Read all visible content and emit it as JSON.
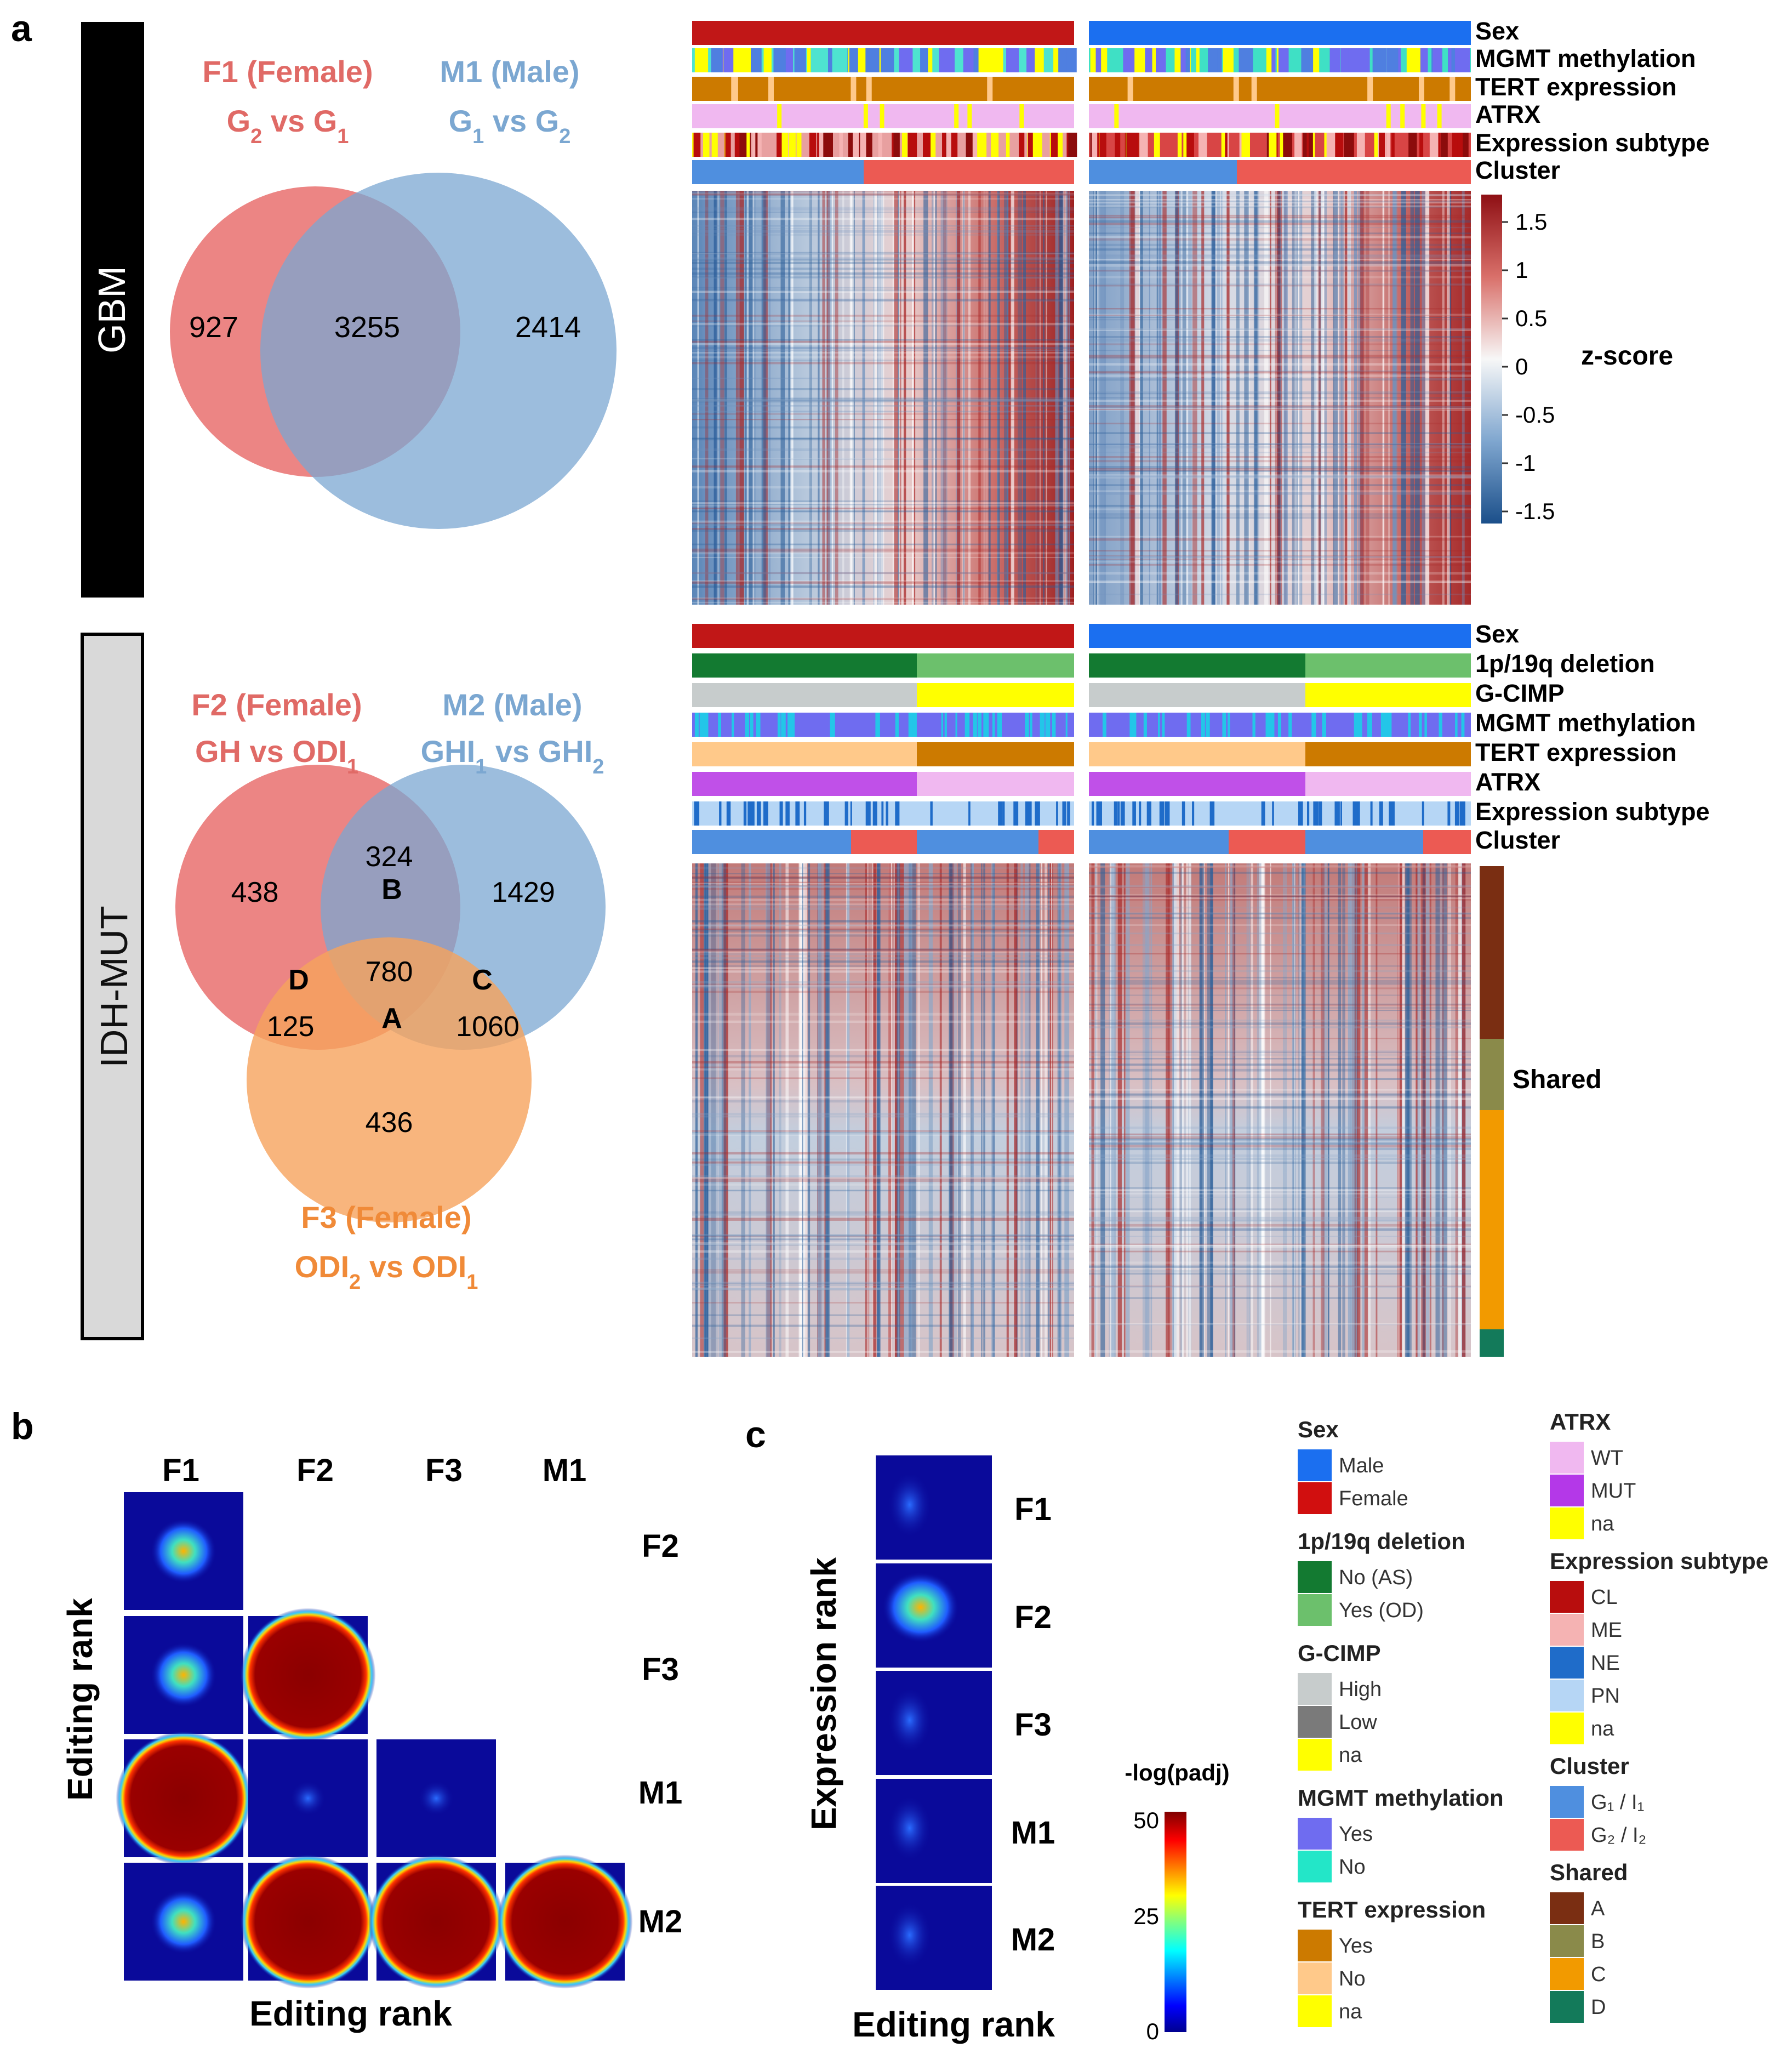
{
  "panel_letters": {
    "a": "a",
    "b": "b",
    "c": "c"
  },
  "side_bars": {
    "gbm": "GBM",
    "idh": "IDH-MUT"
  },
  "venn_gbm": {
    "f1_title": "F1 (Female)",
    "f1_sub": {
      "a": "G",
      "a_sub": "2",
      "b": " vs G",
      "b_sub": "1"
    },
    "m1_title": "M1 (Male)",
    "m1_sub": {
      "a": "G",
      "a_sub": "1",
      "b": " vs G",
      "b_sub": "2"
    },
    "counts": {
      "f1_only": "927",
      "shared": "3255",
      "m1_only": "2414"
    },
    "colors": {
      "female": "#e9706e",
      "male": "#7ba7d1"
    }
  },
  "venn_idh": {
    "f2_title": "F2 (Female)",
    "f2_sub": {
      "a": "GH vs ODI",
      "a_sub": "1"
    },
    "m2_title": "M2 (Male)",
    "m2_sub": {
      "a": "GHI",
      "a_sub": "1",
      "b": " vs GHI",
      "b_sub": "2"
    },
    "f3_title": "F3 (Female)",
    "f3_sub": {
      "a": "ODI",
      "a_sub": "2",
      "b": " vs ODI",
      "b_sub": "1"
    },
    "counts": {
      "f2_only": "438",
      "b": "324",
      "m2_only": "1429",
      "a": "780",
      "d": "125",
      "c": "1060",
      "f3_only": "436"
    },
    "region_labels": {
      "a": "A",
      "b": "B",
      "c": "C",
      "d": "D"
    },
    "colors": {
      "f2": "#e9706e",
      "m2": "#7ba7d1",
      "f3": "#f6a25d"
    }
  },
  "gbm_tracks": [
    "Sex",
    "MGMT methylation",
    "TERT expression",
    "ATRX",
    "Expression subtype",
    "Cluster"
  ],
  "idh_tracks": [
    "Sex",
    "1p/19q deletion",
    "G-CIMP",
    "MGMT methylation",
    "TERT expression",
    "ATRX",
    "Expression subtype",
    "Cluster"
  ],
  "colorbar": {
    "title": "z-score",
    "ticks": [
      "1.5",
      "1",
      "0.5",
      "0",
      "-0.5",
      "-1",
      "-1.5"
    ],
    "low": "#1f5c99",
    "mid": "#f7f7f7",
    "high": "#9e1a1a"
  },
  "shared_label": "Shared",
  "panel_b": {
    "col_labels": [
      "F1",
      "F2",
      "F3",
      "M1"
    ],
    "row_labels": [
      "F2",
      "F3",
      "M1",
      "M2"
    ],
    "xlabel": "Editing rank",
    "ylabel": "Editing rank"
  },
  "panel_c": {
    "row_labels": [
      "F1",
      "F2",
      "F3",
      "M1",
      "M2"
    ],
    "xlabel": "Editing rank",
    "ylabel": "Expression rank"
  },
  "padj_bar": {
    "title": "-log(padj)",
    "ticks": [
      "50",
      "25",
      "0"
    ]
  },
  "legend_left": [
    {
      "title": "Sex",
      "items": [
        {
          "label": "Male",
          "color": "#1b6ff0"
        },
        {
          "label": "Female",
          "color": "#d10f0f"
        }
      ]
    },
    {
      "title": "1p/19q deletion",
      "items": [
        {
          "label": "No (AS)",
          "color": "#137a31"
        },
        {
          "label": "Yes (OD)",
          "color": "#6cc06c"
        }
      ]
    },
    {
      "title": "G-CIMP",
      "items": [
        {
          "label": "High",
          "color": "#c7cccc"
        },
        {
          "label": "Low",
          "color": "#7a7a7a"
        },
        {
          "label": "na",
          "color": "#ffff00"
        }
      ]
    },
    {
      "title": "MGMT methylation",
      "items": [
        {
          "label": "Yes",
          "color": "#6f6cf0"
        },
        {
          "label": "No",
          "color": "#23e6c8"
        }
      ]
    },
    {
      "title": "TERT expression",
      "items": [
        {
          "label": "Yes",
          "color": "#cc7a00"
        },
        {
          "label": "No",
          "color": "#ffc98a"
        },
        {
          "label": "na",
          "color": "#ffff00"
        }
      ]
    }
  ],
  "legend_right": [
    {
      "title": "ATRX",
      "items": [
        {
          "label": "WT",
          "color": "#f0b8f0"
        },
        {
          "label": "MUT",
          "color": "#b438e8"
        },
        {
          "label": "na",
          "color": "#ffff00"
        }
      ]
    },
    {
      "title": "Expression subtype",
      "items": [
        {
          "label": "CL",
          "color": "#b80d0d"
        },
        {
          "label": "ME",
          "color": "#f5b3b3"
        },
        {
          "label": "NE",
          "color": "#1f6cc9"
        },
        {
          "label": "PN",
          "color": "#b6d6f5"
        },
        {
          "label": "na",
          "color": "#ffff00"
        }
      ]
    },
    {
      "title": "Cluster",
      "items": [
        {
          "label": "G₁ / I₁",
          "color": "#4f8fdf"
        },
        {
          "label": "G₂ / I₂",
          "color": "#ec5a53"
        }
      ]
    },
    {
      "title": "Shared",
      "items": [
        {
          "label": "A",
          "color": "#7a2e12"
        },
        {
          "label": "B",
          "color": "#8a8a4a"
        },
        {
          "label": "C",
          "color": "#f29a00"
        },
        {
          "label": "D",
          "color": "#137a5a"
        }
      ]
    }
  ]
}
